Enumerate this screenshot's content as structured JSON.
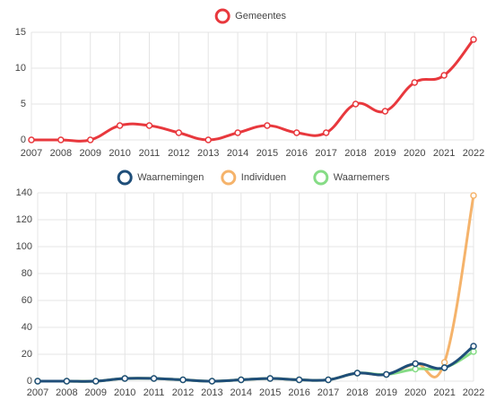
{
  "chart_data": [
    {
      "type": "line",
      "x": [
        "2007",
        "2008",
        "2009",
        "2010",
        "2011",
        "2012",
        "2013",
        "2014",
        "2015",
        "2016",
        "2017",
        "2018",
        "2019",
        "2020",
        "2021",
        "2022"
      ],
      "series": [
        {
          "name": "Gemeentes",
          "color": "#e8383d",
          "values": [
            0,
            0,
            0,
            2,
            2,
            1,
            0,
            1,
            2,
            1,
            1,
            5,
            4,
            8,
            9,
            14
          ]
        }
      ],
      "ylim": [
        0,
        15
      ],
      "yticks": [
        0,
        5,
        10,
        15
      ],
      "grid": true
    },
    {
      "type": "line",
      "x": [
        "2007",
        "2008",
        "2009",
        "2010",
        "2011",
        "2012",
        "2013",
        "2014",
        "2015",
        "2016",
        "2017",
        "2018",
        "2019",
        "2020",
        "2021",
        "2022"
      ],
      "series": [
        {
          "name": "Waarnemingen",
          "color": "#1f4e79",
          "values": [
            0,
            0,
            0,
            2,
            2,
            1,
            0,
            1,
            2,
            1,
            1,
            6,
            5,
            13,
            10,
            26
          ]
        },
        {
          "name": "Individuen",
          "color": "#f5b36b",
          "values": [
            0,
            0,
            0,
            2,
            2,
            1,
            0,
            1,
            2,
            1,
            1,
            6,
            5,
            13,
            14,
            138
          ]
        },
        {
          "name": "Waarnemers",
          "color": "#86dc86",
          "values": [
            0,
            0,
            0,
            2,
            2,
            1,
            0,
            1,
            2,
            1,
            1,
            6,
            5,
            9,
            10,
            22
          ]
        }
      ],
      "ylim": [
        0,
        140
      ],
      "yticks": [
        0,
        20,
        40,
        60,
        80,
        100,
        120,
        140
      ],
      "grid": true
    }
  ]
}
